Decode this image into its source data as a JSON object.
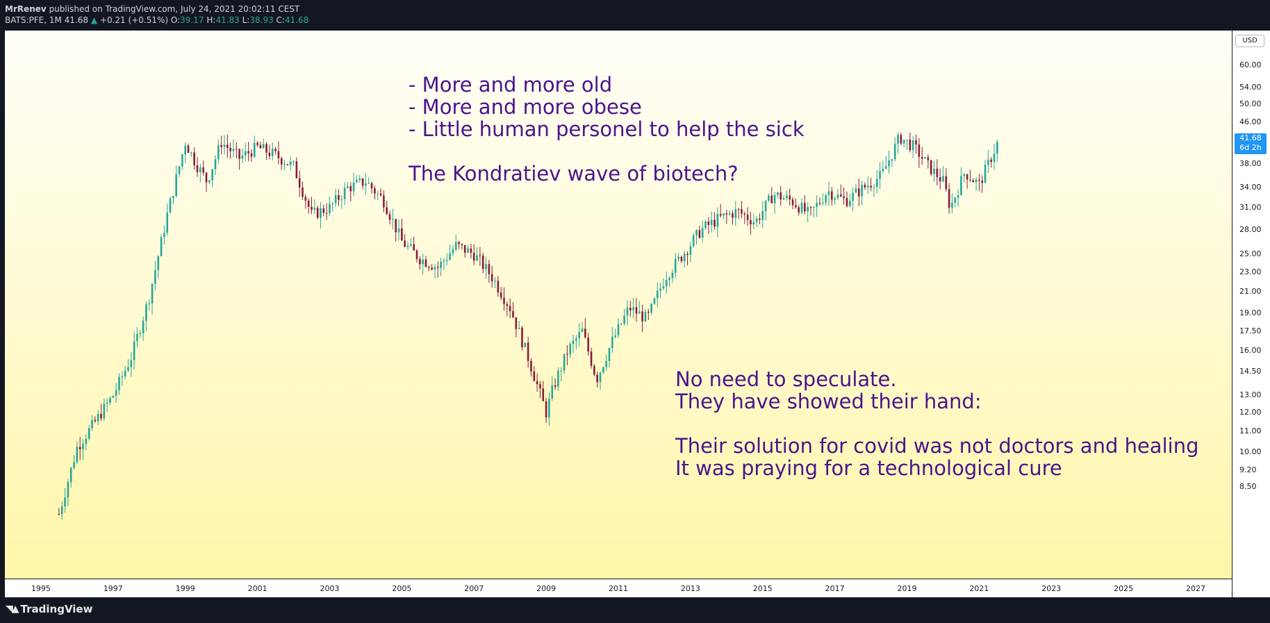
{
  "header": {
    "author": "MrRenev",
    "published": "published on TradingView.com, July 24, 2021 20:02:11 CEST",
    "symbol": "BATS:PFE, 1M",
    "last": "41.68",
    "change_arrow": "▲",
    "change": "+0.21 (+0.51%)",
    "open_label": "O:",
    "open": "39.17",
    "high_label": "H:",
    "high": "41.83",
    "low_label": "L:",
    "low": "38.93",
    "close_label": "C:",
    "close": "41.68"
  },
  "annotations": {
    "top_note": "- More and more old\n- More and more obese\n- Little human personel to help the sick\n\nThe Kondratiev wave of biotech?",
    "bottom_note": "No need to speculate.\nThey have showed their hand:\n\nTheir solution for covid was not doctors and healing\nIt was praying for a technological cure"
  },
  "price_axis": {
    "currency": "USD",
    "labels": [
      "60.00",
      "54.00",
      "50.00",
      "46.00",
      "38.00",
      "34.00",
      "31.00",
      "28.00",
      "25.00",
      "23.00",
      "21.00",
      "19.00",
      "17.50",
      "16.00",
      "14.50",
      "13.00",
      "12.00",
      "11.00",
      "10.00",
      "9.20",
      "8.50"
    ],
    "last_price": "41.68",
    "countdown": "6d 2h"
  },
  "footer": {
    "logo_text": "TradingView",
    "logo_icon": "tradingview-logo-icon"
  },
  "colors": {
    "up": "#26a69a",
    "down": "#8a1a3a",
    "annotation": "#4a148c",
    "badge": "#2196f3"
  },
  "chart_data": {
    "type": "candlestick",
    "title": "BATS:PFE, 1M",
    "scale": "log",
    "ylim": [
      7.9,
      66
    ],
    "xlim": [
      1994.0,
      2028.0
    ],
    "x_ticks": [
      "1995",
      "1997",
      "1999",
      "2001",
      "2003",
      "2005",
      "2007",
      "2009",
      "2011",
      "2013",
      "2015",
      "2017",
      "2019",
      "2021",
      "2023",
      "2025",
      "2027"
    ],
    "x_tick_values": [
      1995,
      1997,
      1999,
      2001,
      2003,
      2005,
      2007,
      2009,
      2011,
      2013,
      2015,
      2017,
      2019,
      2021,
      2023,
      2025,
      2027
    ],
    "last_close": 41.68,
    "series": [
      {
        "name": "PFE",
        "x": [
          1995.5,
          1996.0,
          1996.5,
          1997.0,
          1997.5,
          1998.0,
          1998.5,
          1999.0,
          1999.3,
          1999.6,
          2000.0,
          2000.5,
          2001.0,
          2001.5,
          2002.0,
          2002.5,
          2003.0,
          2003.5,
          2004.0,
          2004.5,
          2005.0,
          2005.5,
          2006.0,
          2006.5,
          2007.0,
          2007.5,
          2008.0,
          2008.5,
          2009.0,
          2009.2,
          2009.6,
          2010.0,
          2010.4,
          2010.8,
          2011.3,
          2011.8,
          2012.3,
          2012.8,
          2013.3,
          2013.8,
          2014.3,
          2014.8,
          2015.3,
          2015.8,
          2016.3,
          2016.8,
          2017.3,
          2017.8,
          2018.3,
          2018.8,
          2019.2,
          2019.6,
          2020.0,
          2020.2,
          2020.6,
          2021.0,
          2021.5
        ],
        "y": [
          7.5,
          10.2,
          11.5,
          13.0,
          15.5,
          20.5,
          30.0,
          42.0,
          38.0,
          35.0,
          42.0,
          39.0,
          41.0,
          39.5,
          37.5,
          30.0,
          31.0,
          34.0,
          35.0,
          32.0,
          26.5,
          24.5,
          23.5,
          26.0,
          25.0,
          22.5,
          19.5,
          15.5,
          12.0,
          13.5,
          16.0,
          17.5,
          14.0,
          16.5,
          19.5,
          18.5,
          22.5,
          25.0,
          28.0,
          29.5,
          30.5,
          29.0,
          33.0,
          32.0,
          30.0,
          33.5,
          32.0,
          34.0,
          36.0,
          43.0,
          41.0,
          37.5,
          35.0,
          31.0,
          36.5,
          34.5,
          41.68
        ]
      }
    ]
  }
}
